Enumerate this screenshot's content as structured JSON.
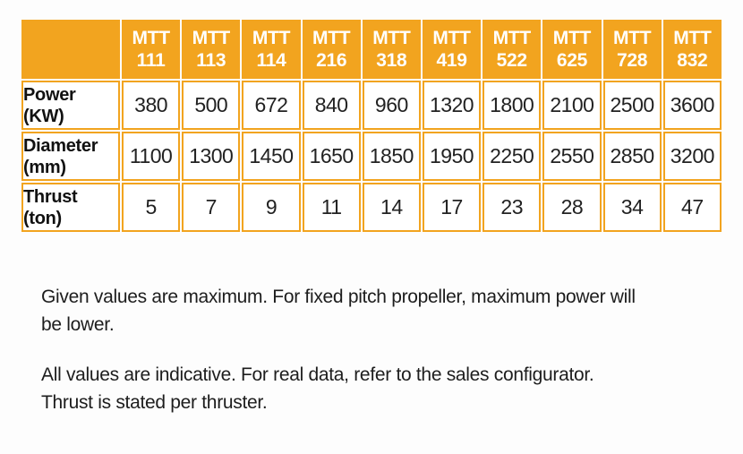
{
  "colors": {
    "accent": "#F2A41F",
    "header_text": "#FFFFFF",
    "body_text": "#222222"
  },
  "chart_data": {
    "type": "table",
    "column_prefix": "MTT",
    "columns": [
      "111",
      "113",
      "114",
      "216",
      "318",
      "419",
      "522",
      "625",
      "728",
      "832"
    ],
    "rows": [
      {
        "label": "Power",
        "unit": "(KW)",
        "values": [
          380,
          500,
          672,
          840,
          960,
          1320,
          1800,
          2100,
          2500,
          3600
        ]
      },
      {
        "label": "Diameter",
        "unit": "(mm)",
        "values": [
          1100,
          1300,
          1450,
          1650,
          1850,
          1950,
          2250,
          2550,
          2850,
          3200
        ]
      },
      {
        "label": "Thrust",
        "unit": "(ton)",
        "values": [
          5,
          7,
          9,
          11,
          14,
          17,
          23,
          28,
          34,
          47
        ]
      }
    ]
  },
  "notes": [
    "Given values are maximum. For fixed pitch propeller, maximum power will\nbe lower.",
    "All values are indicative. For real data, refer to the sales configurator.\nThrust is stated per thruster."
  ]
}
